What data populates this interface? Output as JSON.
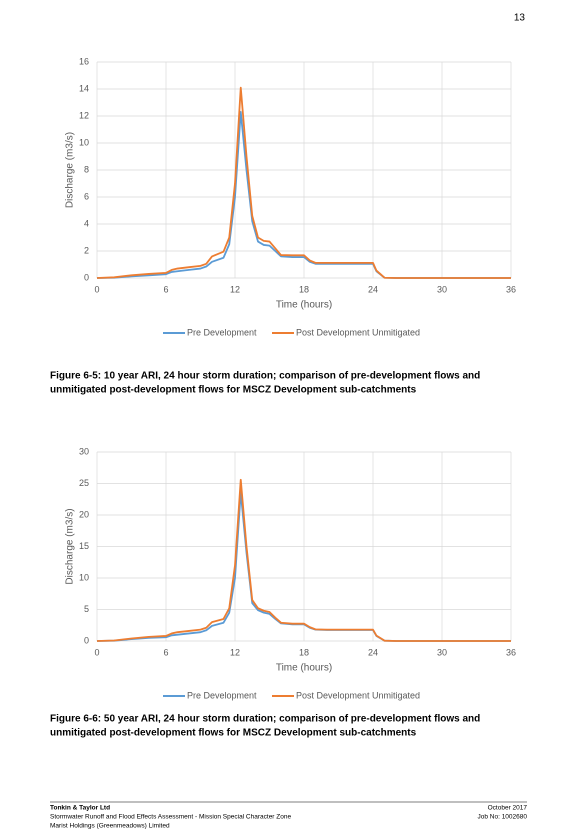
{
  "page_number": "13",
  "chart_data": [
    {
      "type": "line",
      "caption": [
        "Figure 6-5: 10 year ARI, 24 hour storm duration; comparison of pre-development flows and",
        "unmitigated post-development flows for MSCZ Development sub-catchments"
      ],
      "x_label": "Time (hours)",
      "y_label": "Discharge (m3/s)",
      "x": [
        0,
        1.5,
        3,
        4.5,
        6,
        6.5,
        7,
        8,
        9,
        9.5,
        10,
        11,
        11.5,
        12,
        12.5,
        13,
        13.5,
        14,
        14.5,
        15,
        15.5,
        16,
        17,
        18,
        18.5,
        19,
        20,
        22,
        24,
        24.3,
        25,
        26,
        30,
        36
      ],
      "series": [
        {
          "name": "Pre Development",
          "color": "#5b9bd5",
          "values": [
            0,
            0.02,
            0.12,
            0.2,
            0.28,
            0.45,
            0.5,
            0.6,
            0.7,
            0.85,
            1.2,
            1.5,
            2.5,
            6,
            12.3,
            8,
            4.2,
            2.7,
            2.45,
            2.4,
            2.0,
            1.6,
            1.55,
            1.55,
            1.2,
            1.05,
            1.05,
            1.05,
            1.05,
            0.5,
            0.02,
            0,
            0,
            0
          ]
        },
        {
          "name": "Post Development Unmitigated",
          "color": "#ed7d31",
          "values": [
            0,
            0.05,
            0.2,
            0.3,
            0.38,
            0.6,
            0.7,
            0.8,
            0.9,
            1.05,
            1.6,
            1.95,
            3,
            7,
            14.1,
            9,
            4.6,
            3.0,
            2.75,
            2.7,
            2.2,
            1.7,
            1.68,
            1.68,
            1.3,
            1.12,
            1.12,
            1.12,
            1.12,
            0.55,
            0.02,
            0,
            0,
            0
          ]
        }
      ],
      "xlim": [
        0,
        36
      ],
      "xticks": [
        0,
        6,
        12,
        18,
        24,
        30,
        36
      ],
      "ylim": [
        0,
        16
      ],
      "yticks": [
        0,
        2,
        4,
        6,
        8,
        10,
        12,
        14,
        16
      ],
      "grid": true,
      "legend": "bottom"
    },
    {
      "type": "line",
      "caption": [
        "Figure 6-6: 50 year ARI, 24 hour storm duration; comparison of pre-development flows and",
        "unmitigated post-development flows for MSCZ Development sub-catchments"
      ],
      "x_label": "Time (hours)",
      "y_label": "Discharge (m3/s)",
      "x": [
        0,
        1.5,
        3,
        4.5,
        6,
        6.5,
        7,
        8,
        9,
        9.5,
        10,
        11,
        11.5,
        12,
        12.5,
        13,
        13.5,
        14,
        14.5,
        15,
        15.5,
        16,
        17,
        18,
        18.5,
        19,
        20,
        22,
        24,
        24.3,
        25,
        26,
        30,
        36
      ],
      "series": [
        {
          "name": "Pre Development",
          "color": "#5b9bd5",
          "values": [
            0,
            0.05,
            0.3,
            0.5,
            0.6,
            0.9,
            1.0,
            1.2,
            1.4,
            1.7,
            2.4,
            2.9,
            4.5,
            10,
            23.6,
            14,
            6,
            4.9,
            4.5,
            4.3,
            3.5,
            2.8,
            2.65,
            2.65,
            2.1,
            1.8,
            1.75,
            1.75,
            1.75,
            0.8,
            0.05,
            0,
            0,
            0
          ]
        },
        {
          "name": "Post Development Unmitigated",
          "color": "#ed7d31",
          "values": [
            0,
            0.08,
            0.4,
            0.65,
            0.8,
            1.2,
            1.4,
            1.6,
            1.8,
            2.1,
            3.0,
            3.5,
            5.2,
            12,
            25.6,
            15,
            6.5,
            5.2,
            4.8,
            4.6,
            3.7,
            2.9,
            2.75,
            2.75,
            2.2,
            1.85,
            1.8,
            1.8,
            1.8,
            0.85,
            0.05,
            0,
            0,
            0
          ]
        }
      ],
      "xlim": [
        0,
        36
      ],
      "xticks": [
        0,
        6,
        12,
        18,
        24,
        30,
        36
      ],
      "ylim": [
        0,
        30
      ],
      "yticks": [
        0,
        5,
        10,
        15,
        20,
        25,
        30
      ],
      "grid": true,
      "legend": "bottom"
    }
  ],
  "footer": {
    "left": [
      "Tonkin & Taylor Ltd",
      "Stormwater Runoff and Flood Effects Assessment - Mission Special Character Zone",
      "Marist Holdings (Greenmeadows) Limited"
    ],
    "right": [
      "October 2017",
      "Job No: 1002680"
    ]
  }
}
